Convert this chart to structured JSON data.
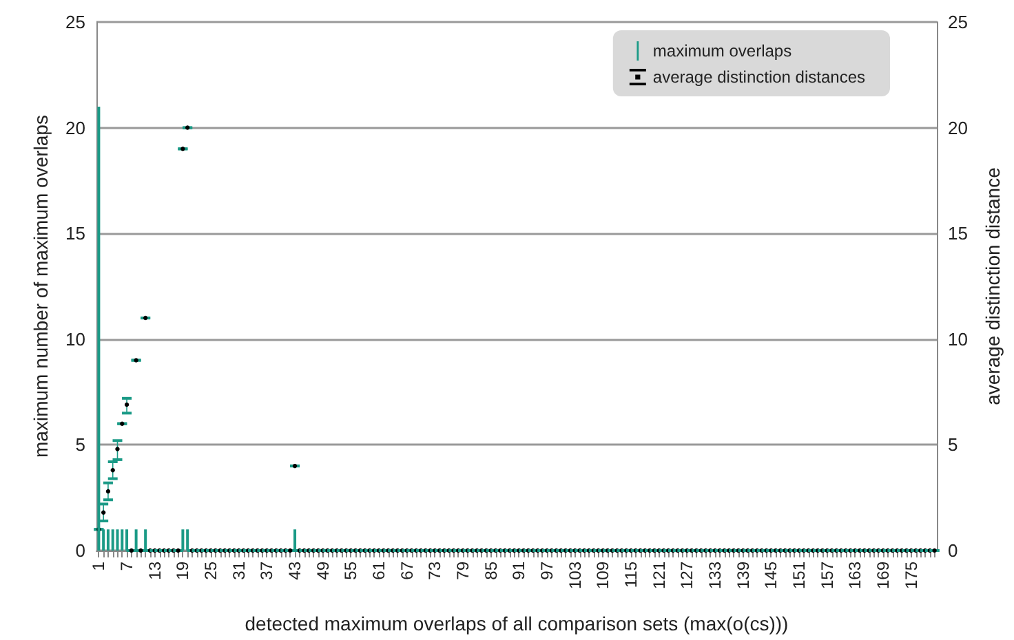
{
  "chart_data": {
    "type": "bar",
    "xlabel": "detected maximum overlaps of all comparison sets (max(o(cs)))",
    "ylabel": "maximum number of maximum overlaps",
    "y2label": "average distinction distance",
    "categories": [
      "1",
      null,
      null,
      null,
      null,
      null,
      "7",
      null,
      null,
      null,
      null,
      null,
      "13",
      null,
      null,
      null,
      null,
      null,
      "19",
      null,
      null,
      null,
      null,
      null,
      "25",
      null,
      null,
      null,
      null,
      null,
      "31",
      null,
      null,
      null,
      null,
      null,
      "37",
      null,
      null,
      null,
      null,
      null,
      "43",
      null,
      null,
      null,
      null,
      null,
      "49",
      null,
      null,
      null,
      null,
      null,
      "55",
      null,
      null,
      null,
      null,
      null,
      "61",
      null,
      null,
      null,
      null,
      null,
      "67",
      null,
      null,
      null,
      null,
      null,
      "73",
      null,
      null,
      null,
      null,
      null,
      "79",
      null,
      null,
      null,
      null,
      null,
      "85",
      null,
      null,
      null,
      null,
      null,
      "91",
      null,
      null,
      null,
      null,
      null,
      "97",
      null,
      null,
      null,
      null,
      null,
      "103",
      null,
      null,
      null,
      null,
      null,
      "109",
      null,
      null,
      null,
      null,
      null,
      "115",
      null,
      null,
      null,
      null,
      null,
      "121",
      null,
      null,
      null,
      null,
      null,
      "127",
      null,
      null,
      null,
      null,
      null,
      "133",
      null,
      null,
      null,
      null,
      null,
      "139",
      null,
      null,
      null,
      null,
      null,
      "145",
      null,
      null,
      null,
      null,
      null,
      "151",
      null,
      null,
      null,
      null,
      null,
      "157",
      null,
      null,
      null,
      null,
      null,
      "163",
      null,
      null,
      null,
      null,
      null,
      "169",
      null,
      null,
      null,
      null,
      null,
      "175",
      null,
      null,
      null,
      null,
      null
    ],
    "series": [
      {
        "name": "maximum overlaps",
        "color": "#1a9a86",
        "values": [
          21,
          1,
          1,
          1,
          1,
          1,
          1,
          0,
          1,
          0,
          1,
          0,
          0,
          0,
          0,
          0,
          0,
          0,
          1,
          1,
          0,
          0,
          0,
          0,
          0,
          0,
          0,
          0,
          0,
          0,
          0,
          0,
          0,
          0,
          0,
          0,
          0,
          0,
          0,
          0,
          0,
          0,
          1,
          0,
          0,
          0,
          0,
          0,
          0,
          0,
          0,
          0,
          0,
          0,
          0,
          0,
          0,
          0,
          0,
          0,
          0,
          0,
          0,
          0,
          0,
          0,
          0,
          0,
          0,
          0,
          0,
          0,
          0,
          0,
          0,
          0,
          0,
          0,
          0,
          0,
          0,
          0,
          0,
          0,
          0,
          0,
          0,
          0,
          0,
          0,
          0,
          0,
          0,
          0,
          0,
          0,
          0,
          0,
          0,
          0,
          0,
          0,
          0,
          0,
          0,
          0,
          0,
          0,
          0,
          0,
          0,
          0,
          0,
          0,
          0,
          0,
          0,
          0,
          0,
          0,
          0,
          0,
          0,
          0,
          0,
          0,
          0,
          0,
          0,
          0,
          0,
          0,
          0,
          0,
          0,
          0,
          0,
          0,
          0,
          0,
          0,
          0,
          0,
          0,
          0,
          0,
          0,
          0,
          0,
          0,
          0,
          0,
          0,
          0,
          0,
          0,
          0,
          0,
          0,
          0,
          0,
          0,
          0,
          0,
          0,
          0,
          0,
          0,
          0,
          0,
          0,
          0,
          0,
          0,
          0,
          0,
          0,
          0,
          0,
          0
        ]
      },
      {
        "name": "average distinction distances",
        "type": "scatter",
        "axis": "y2",
        "color": "#000000",
        "values": [
          1,
          1.8,
          2.8,
          3.8,
          4.8,
          6,
          6.9,
          0,
          9,
          0,
          11,
          0,
          0,
          0,
          0,
          0,
          0,
          0,
          19,
          20,
          0,
          0,
          0,
          0,
          0,
          0,
          0,
          0,
          0,
          0,
          0,
          0,
          0,
          0,
          0,
          0,
          0,
          0,
          0,
          0,
          0,
          0,
          4,
          0,
          0,
          0,
          0,
          0,
          0,
          0,
          0,
          0,
          0,
          0,
          0,
          0,
          0,
          0,
          0,
          0,
          0,
          0,
          0,
          0,
          0,
          0,
          0,
          0,
          0,
          0,
          0,
          0,
          0,
          0,
          0,
          0,
          0,
          0,
          0,
          0,
          0,
          0,
          0,
          0,
          0,
          0,
          0,
          0,
          0,
          0,
          0,
          0,
          0,
          0,
          0,
          0,
          0,
          0,
          0,
          0,
          0,
          0,
          0,
          0,
          0,
          0,
          0,
          0,
          0,
          0,
          0,
          0,
          0,
          0,
          0,
          0,
          0,
          0,
          0,
          0,
          0,
          0,
          0,
          0,
          0,
          0,
          0,
          0,
          0,
          0,
          0,
          0,
          0,
          0,
          0,
          0,
          0,
          0,
          0,
          0,
          0,
          0,
          0,
          0,
          0,
          0,
          0,
          0,
          0,
          0,
          0,
          0,
          0,
          0,
          0,
          0,
          0,
          0,
          0,
          0,
          0,
          0,
          0,
          0,
          0,
          0,
          0,
          0,
          0,
          0,
          0,
          0,
          0,
          0,
          0,
          0,
          0,
          0,
          0,
          0
        ],
        "errors": [
          null,
          [
            1.4,
            2.2
          ],
          [
            2.4,
            3.2
          ],
          [
            3.4,
            4.2
          ],
          [
            4.3,
            5.2
          ],
          null,
          [
            6.5,
            7.2
          ],
          null,
          null,
          null,
          null,
          null,
          null,
          null,
          null,
          null,
          null,
          null,
          null,
          null,
          null,
          null,
          null,
          null,
          null,
          null,
          null,
          null,
          null,
          null,
          null,
          null,
          null,
          null,
          null,
          null,
          null,
          null,
          null,
          null,
          null,
          null,
          null,
          null,
          null,
          null,
          null,
          null,
          null,
          null,
          null,
          null,
          null,
          null,
          null,
          null,
          null,
          null,
          null,
          null,
          null,
          null,
          null,
          null,
          null,
          null,
          null,
          null,
          null,
          null,
          null,
          null,
          null,
          null,
          null,
          null,
          null,
          null,
          null,
          null,
          null,
          null,
          null,
          null,
          null,
          null,
          null,
          null,
          null,
          null,
          null,
          null,
          null,
          null,
          null,
          null,
          null,
          null,
          null,
          null,
          null,
          null,
          null,
          null,
          null,
          null,
          null,
          null,
          null,
          null,
          null,
          null,
          null,
          null,
          null,
          null,
          null,
          null,
          null,
          null,
          null,
          null,
          null,
          null,
          null,
          null,
          null,
          null,
          null,
          null,
          null,
          null,
          null,
          null,
          null,
          null,
          null,
          null,
          null,
          null,
          null,
          null,
          null,
          null,
          null,
          null,
          null,
          null,
          null,
          null,
          null,
          null,
          null,
          null,
          null,
          null,
          null,
          null,
          null,
          null,
          null,
          null,
          null,
          null,
          null,
          null,
          null,
          null,
          null,
          null,
          null,
          null,
          null,
          null,
          null,
          null,
          null,
          null,
          null,
          null
        ]
      }
    ],
    "ylim": [
      0,
      25
    ],
    "yticks": [
      0,
      5,
      10,
      15,
      20,
      25
    ],
    "y2lim": [
      0,
      25
    ],
    "y2ticks": [
      0,
      5,
      10,
      15,
      20,
      25
    ],
    "grid": "y",
    "legend": "top right",
    "marker": "circle"
  }
}
